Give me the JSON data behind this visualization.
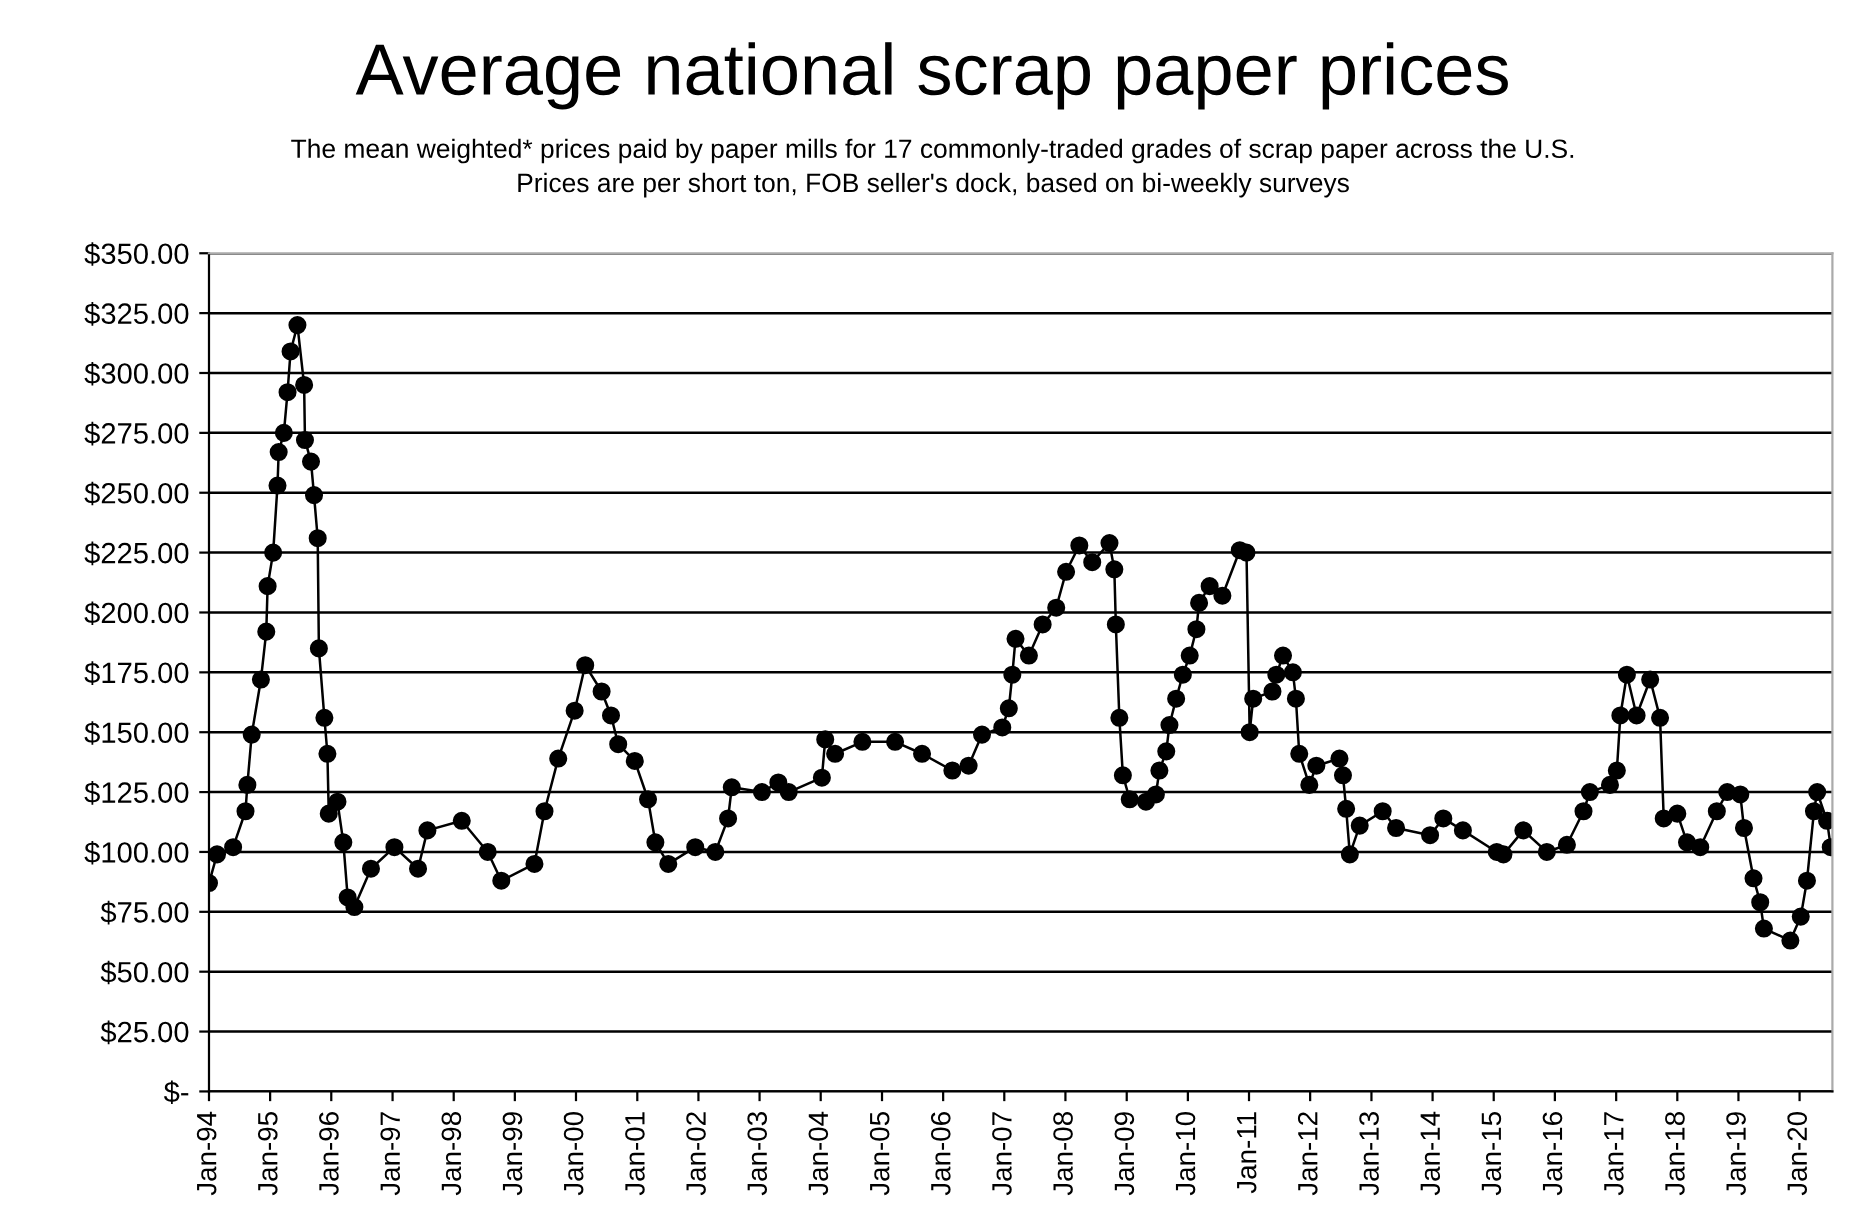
{
  "chart_data": {
    "type": "line",
    "title": "Average national scrap paper prices",
    "subtitle": "The mean weighted* prices paid by paper mills for 17 commonly-traded grades of scrap paper across the U.S.\nPrices are per short ton, FOB seller's dock, based on bi-weekly surveys",
    "x": [
      "1994-01-01",
      "1994-02-18",
      "1994-05-25",
      "1994-08-07",
      "1994-08-18",
      "1994-09-13",
      "1994-11-07",
      "1994-12-09",
      "1994-12-17",
      "1995-01-19",
      "1995-02-14",
      "1995-02-21",
      "1995-03-24",
      "1995-04-15",
      "1995-05-03",
      "1995-06-13",
      "1995-07-23",
      "1995-07-28",
      "1995-09-02",
      "1995-09-20",
      "1995-10-12",
      "1995-10-19",
      "1995-11-21",
      "1995-12-09",
      "1995-12-17",
      "1996-02-07",
      "1996-03-13",
      "1996-04-08",
      "1996-05-18",
      "1996-08-25",
      "1997-01-12",
      "1997-06-02",
      "1997-07-28",
      "1998-02-18",
      "1998-07-23",
      "1998-10-12",
      "1999-04-28",
      "1999-06-27",
      "1999-09-17",
      "1999-12-24",
      "2000-02-25",
      "2000-06-02",
      "2000-07-28",
      "2000-09-09",
      "2000-12-17",
      "2001-03-06",
      "2001-04-19",
      "2001-07-05",
      "2001-12-13",
      "2002-04-12",
      "2002-06-27",
      "2002-07-19",
      "2003-01-15",
      "2003-04-23",
      "2003-06-24",
      "2004-01-08",
      "2004-01-28",
      "2004-03-27",
      "2004-09-06",
      "2005-03-20",
      "2005-08-28",
      "2006-02-25",
      "2006-06-02",
      "2006-08-21",
      "2006-12-20",
      "2007-01-28",
      "2007-02-18",
      "2007-03-09",
      "2007-05-28",
      "2007-08-18",
      "2007-11-07",
      "2008-01-05",
      "2008-03-24",
      "2008-06-09",
      "2008-09-20",
      "2008-10-19",
      "2008-10-28",
      "2008-11-18",
      "2008-12-09",
      "2009-01-19",
      "2009-04-26",
      "2009-06-24",
      "2009-07-15",
      "2009-08-25",
      "2009-09-13",
      "2009-10-23",
      "2009-12-02",
      "2010-01-12",
      "2010-02-21",
      "2010-03-09",
      "2010-05-11",
      "2010-07-26",
      "2010-11-07",
      "2010-12-17",
      "2011-01-05",
      "2011-01-26",
      "2011-05-21",
      "2011-06-13",
      "2011-07-23",
      "2011-09-20",
      "2011-10-08",
      "2011-10-28",
      "2011-12-27",
      "2012-02-07",
      "2012-06-24",
      "2012-07-15",
      "2012-08-03",
      "2012-08-25",
      "2012-10-23",
      "2013-03-09",
      "2013-05-28",
      "2013-12-17",
      "2014-03-06",
      "2014-07-01",
      "2015-01-19",
      "2015-02-28",
      "2015-06-27",
      "2015-11-14",
      "2016-03-13",
      "2016-06-20",
      "2016-07-28",
      "2016-11-25",
      "2017-01-05",
      "2017-01-26",
      "2017-03-06",
      "2017-05-03",
      "2017-07-23",
      "2017-09-20",
      "2017-10-12",
      "2018-01-01",
      "2018-02-28",
      "2018-05-18",
      "2018-08-25",
      "2018-10-26",
      "2019-01-12",
      "2019-02-03",
      "2019-04-01",
      "2019-05-11",
      "2019-06-02",
      "2019-11-07",
      "2020-01-08",
      "2020-02-14",
      "2020-03-27",
      "2020-04-15",
      "2020-06-13",
      "2020-07-05"
    ],
    "series": [
      {
        "color": "#000000",
        "values": [
          87,
          99,
          102,
          117,
          128,
          149,
          172,
          192,
          211,
          225,
          253,
          267,
          275,
          292,
          309,
          320,
          295,
          272,
          263,
          249,
          231,
          185,
          156,
          141,
          116,
          121,
          104,
          81,
          77,
          93,
          102,
          93,
          109,
          113,
          100,
          88,
          95,
          117,
          139,
          159,
          178,
          167,
          157,
          145,
          138,
          122,
          104,
          95,
          102,
          100,
          114,
          127,
          125,
          129,
          125,
          131,
          147,
          141,
          146,
          146,
          141,
          134,
          136,
          149,
          152,
          160,
          174,
          189,
          182,
          195,
          202,
          217,
          228,
          221,
          229,
          218,
          195,
          156,
          132,
          122,
          121,
          124,
          134,
          142,
          153,
          164,
          174,
          182,
          193,
          204,
          211,
          207,
          226,
          225,
          150,
          164,
          167,
          174,
          182,
          175,
          164,
          141,
          128,
          136,
          139,
          132,
          118,
          99,
          111,
          117,
          110,
          107,
          114,
          109,
          100,
          99,
          109,
          100,
          103,
          117,
          125,
          128,
          134,
          157,
          174,
          157,
          172,
          156,
          114,
          116,
          104,
          102,
          117,
          125,
          124,
          110,
          89,
          79,
          68,
          63,
          73,
          88,
          117,
          125,
          113,
          102
        ]
      }
    ],
    "xlim": [
      "1994-01-01",
      "2020-07-15"
    ],
    "xticks": [
      {
        "value": "1994-01-01",
        "label": "Jan-94"
      },
      {
        "value": "1995-01-01",
        "label": "Jan-95"
      },
      {
        "value": "1996-01-01",
        "label": "Jan-96"
      },
      {
        "value": "1997-01-01",
        "label": "Jan-97"
      },
      {
        "value": "1998-01-01",
        "label": "Jan-98"
      },
      {
        "value": "1999-01-01",
        "label": "Jan-99"
      },
      {
        "value": "2000-01-01",
        "label": "Jan-00"
      },
      {
        "value": "2001-01-01",
        "label": "Jan-01"
      },
      {
        "value": "2002-01-01",
        "label": "Jan-02"
      },
      {
        "value": "2003-01-01",
        "label": "Jan-03"
      },
      {
        "value": "2004-01-01",
        "label": "Jan-04"
      },
      {
        "value": "2005-01-01",
        "label": "Jan-05"
      },
      {
        "value": "2006-01-01",
        "label": "Jan-06"
      },
      {
        "value": "2007-01-01",
        "label": "Jan-07"
      },
      {
        "value": "2008-01-01",
        "label": "Jan-08"
      },
      {
        "value": "2009-01-01",
        "label": "Jan-09"
      },
      {
        "value": "2010-01-01",
        "label": "Jan-10"
      },
      {
        "value": "2011-01-01",
        "label": "Jan-11"
      },
      {
        "value": "2012-01-01",
        "label": "Jan-12"
      },
      {
        "value": "2013-01-01",
        "label": "Jan-13"
      },
      {
        "value": "2014-01-01",
        "label": "Jan-14"
      },
      {
        "value": "2015-01-01",
        "label": "Jan-15"
      },
      {
        "value": "2016-01-01",
        "label": "Jan-16"
      },
      {
        "value": "2017-01-01",
        "label": "Jan-17"
      },
      {
        "value": "2018-01-01",
        "label": "Jan-18"
      },
      {
        "value": "2019-01-01",
        "label": "Jan-19"
      },
      {
        "value": "2020-01-01",
        "label": "Jan-20"
      }
    ],
    "ylim": [
      0,
      350
    ],
    "yticks": [
      {
        "value": 0,
        "label": "$-"
      },
      {
        "value": 25,
        "label": "$25.00"
      },
      {
        "value": 50,
        "label": "$50.00"
      },
      {
        "value": 75,
        "label": "$75.00"
      },
      {
        "value": 100,
        "label": "$100.00"
      },
      {
        "value": 125,
        "label": "$125.00"
      },
      {
        "value": 150,
        "label": "$150.00"
      },
      {
        "value": 175,
        "label": "$175.00"
      },
      {
        "value": 200,
        "label": "$200.00"
      },
      {
        "value": 225,
        "label": "$225.00"
      },
      {
        "value": 250,
        "label": "$250.00"
      },
      {
        "value": 275,
        "label": "$275.00"
      },
      {
        "value": 300,
        "label": "$300.00"
      },
      {
        "value": 325,
        "label": "$325.00"
      },
      {
        "value": 350,
        "label": "$350.00"
      }
    ],
    "grid": "y",
    "marker": "circle",
    "line_style": "solid"
  }
}
